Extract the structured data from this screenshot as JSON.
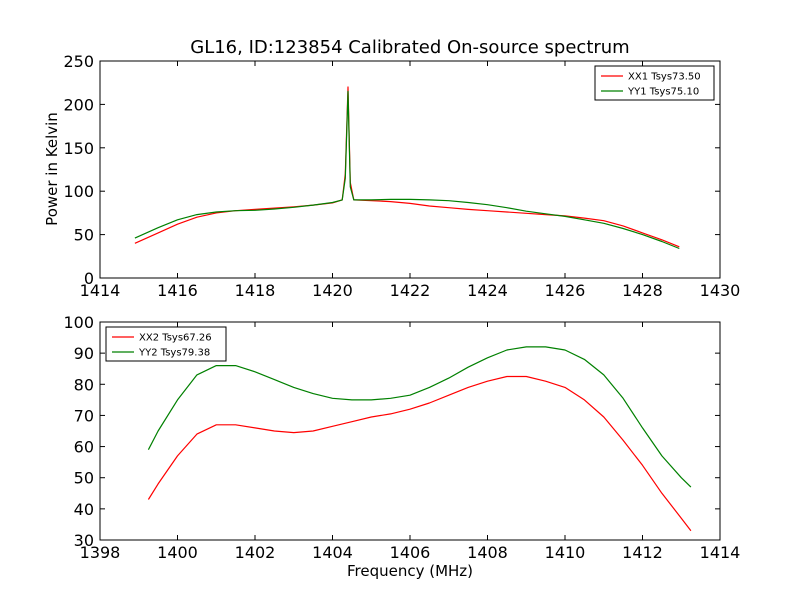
{
  "chart_data": [
    {
      "type": "line",
      "title": "GL16, ID:123854 Calibrated On-source spectrum",
      "xlabel": "",
      "ylabel": "Power in Kelvin",
      "xlim": [
        1414,
        1430
      ],
      "ylim": [
        0,
        250
      ],
      "xticks": [
        1414,
        1416,
        1418,
        1420,
        1422,
        1424,
        1426,
        1428,
        1430
      ],
      "yticks": [
        0,
        50,
        100,
        150,
        200,
        250
      ],
      "grid": false,
      "legend_position": "top-right",
      "series": [
        {
          "name": "XX1 Tsys73.50",
          "color": "#ff0000",
          "x": [
            1414.9,
            1415.5,
            1416.0,
            1416.5,
            1417.0,
            1417.5,
            1418.0,
            1418.5,
            1419.0,
            1419.5,
            1420.0,
            1420.25,
            1420.33,
            1420.4,
            1420.46,
            1420.55,
            1421.0,
            1421.5,
            1422.0,
            1422.5,
            1423.0,
            1423.5,
            1424.0,
            1424.5,
            1425.0,
            1425.5,
            1426.0,
            1426.5,
            1427.0,
            1427.5,
            1428.0,
            1428.5,
            1428.95
          ],
          "y": [
            40,
            52,
            62,
            70,
            75,
            77.5,
            79,
            80.5,
            82,
            84,
            86.5,
            90,
            120,
            220,
            110,
            90,
            89,
            88,
            86,
            83,
            81,
            79,
            77.5,
            76,
            74.5,
            73,
            71.5,
            69,
            66,
            60,
            52,
            44,
            36
          ]
        },
        {
          "name": "YY1 Tsys75.10",
          "color": "#008000",
          "x": [
            1414.9,
            1415.5,
            1416.0,
            1416.5,
            1417.0,
            1417.5,
            1418.0,
            1418.5,
            1419.0,
            1419.5,
            1420.0,
            1420.25,
            1420.33,
            1420.4,
            1420.46,
            1420.55,
            1421.0,
            1421.5,
            1422.0,
            1422.5,
            1423.0,
            1423.5,
            1424.0,
            1424.5,
            1425.0,
            1425.5,
            1426.0,
            1426.5,
            1427.0,
            1427.5,
            1428.0,
            1428.5,
            1428.95
          ],
          "y": [
            46,
            58,
            67,
            73,
            76,
            77.5,
            78,
            79.5,
            81.5,
            84,
            87,
            90,
            115,
            215,
            105,
            90,
            90,
            90.5,
            90.5,
            90,
            89,
            87,
            84.5,
            81,
            77,
            74,
            71,
            67,
            63,
            57,
            50,
            42,
            34
          ]
        }
      ]
    },
    {
      "type": "line",
      "title": "",
      "xlabel": "Frequency (MHz)",
      "ylabel": "",
      "xlim": [
        1398,
        1414
      ],
      "ylim": [
        30,
        100
      ],
      "xticks": [
        1398,
        1400,
        1402,
        1404,
        1406,
        1408,
        1410,
        1412,
        1414
      ],
      "yticks": [
        30,
        40,
        50,
        60,
        70,
        80,
        90,
        100
      ],
      "grid": false,
      "legend_position": "top-left",
      "series": [
        {
          "name": "XX2 Tsys67.26",
          "color": "#ff0000",
          "x": [
            1399.25,
            1399.5,
            1400.0,
            1400.5,
            1401.0,
            1401.5,
            1402.0,
            1402.5,
            1403.0,
            1403.5,
            1404.0,
            1404.5,
            1405.0,
            1405.5,
            1406.0,
            1406.5,
            1407.0,
            1407.5,
            1408.0,
            1408.5,
            1409.0,
            1409.5,
            1410.0,
            1410.5,
            1411.0,
            1411.5,
            1412.0,
            1412.5,
            1413.0,
            1413.25
          ],
          "y": [
            43,
            48,
            57,
            64,
            67,
            67,
            66,
            65,
            64.5,
            65,
            66.5,
            68,
            69.5,
            70.5,
            72,
            74,
            76.5,
            79,
            81,
            82.5,
            82.5,
            81,
            79,
            75,
            69.5,
            62,
            54,
            45,
            37,
            33
          ]
        },
        {
          "name": "YY2 Tsys79.38",
          "color": "#008000",
          "x": [
            1399.25,
            1399.5,
            1400.0,
            1400.5,
            1401.0,
            1401.5,
            1402.0,
            1402.5,
            1403.0,
            1403.5,
            1404.0,
            1404.5,
            1405.0,
            1405.5,
            1406.0,
            1406.5,
            1407.0,
            1407.5,
            1408.0,
            1408.5,
            1409.0,
            1409.5,
            1410.0,
            1410.5,
            1411.0,
            1411.5,
            1412.0,
            1412.5,
            1413.0,
            1413.25
          ],
          "y": [
            59,
            65,
            75,
            83,
            86,
            86,
            84,
            81.5,
            79,
            77,
            75.5,
            75,
            75,
            75.5,
            76.5,
            79,
            82,
            85.5,
            88.5,
            91,
            92,
            92,
            91,
            88,
            83,
            75.5,
            66,
            57,
            50,
            47
          ]
        }
      ]
    }
  ]
}
